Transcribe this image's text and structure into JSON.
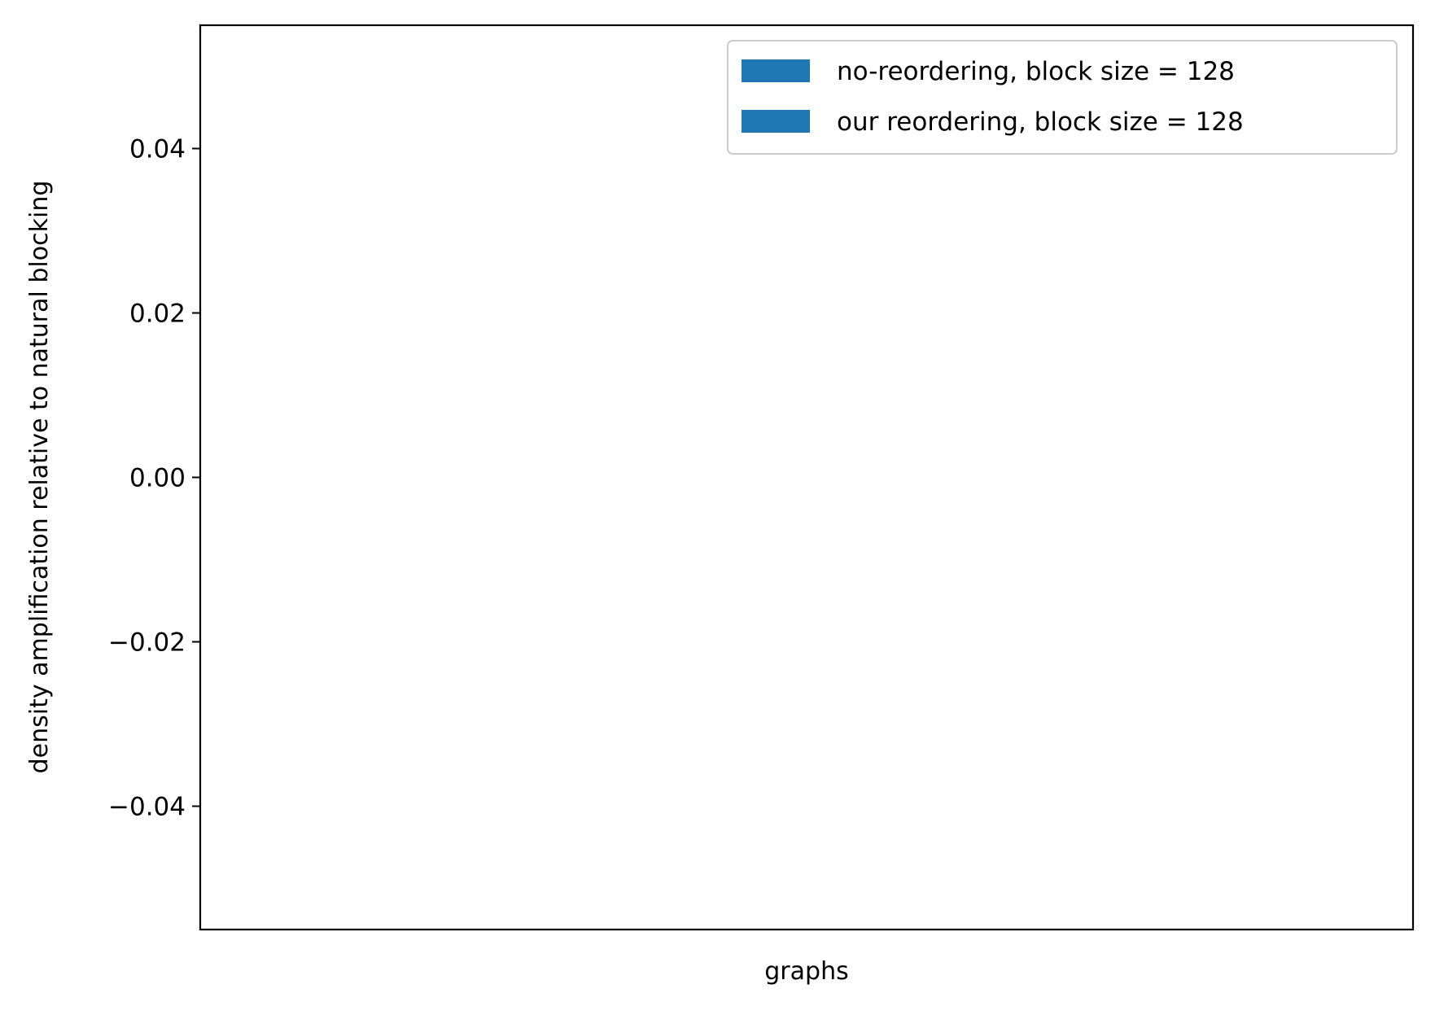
{
  "chart_data": {
    "type": "bar",
    "title": "",
    "xlabel": "graphs",
    "ylabel": "density amplification relative to natural blocking",
    "ylim": [
      -0.055,
      0.055
    ],
    "yticks": [
      -0.04,
      -0.02,
      0.0,
      0.02,
      0.04
    ],
    "ytick_labels": [
      "−0.04",
      "−0.02",
      "0.00",
      "0.02",
      "0.04"
    ],
    "categories": [],
    "grid": false,
    "legend_position": "top-right",
    "series": [
      {
        "name": "no-reordering, block size = 128",
        "color": "#1f77b4",
        "values": []
      },
      {
        "name": "our reordering, block size = 128",
        "color": "#1f77b4",
        "values": []
      }
    ]
  }
}
